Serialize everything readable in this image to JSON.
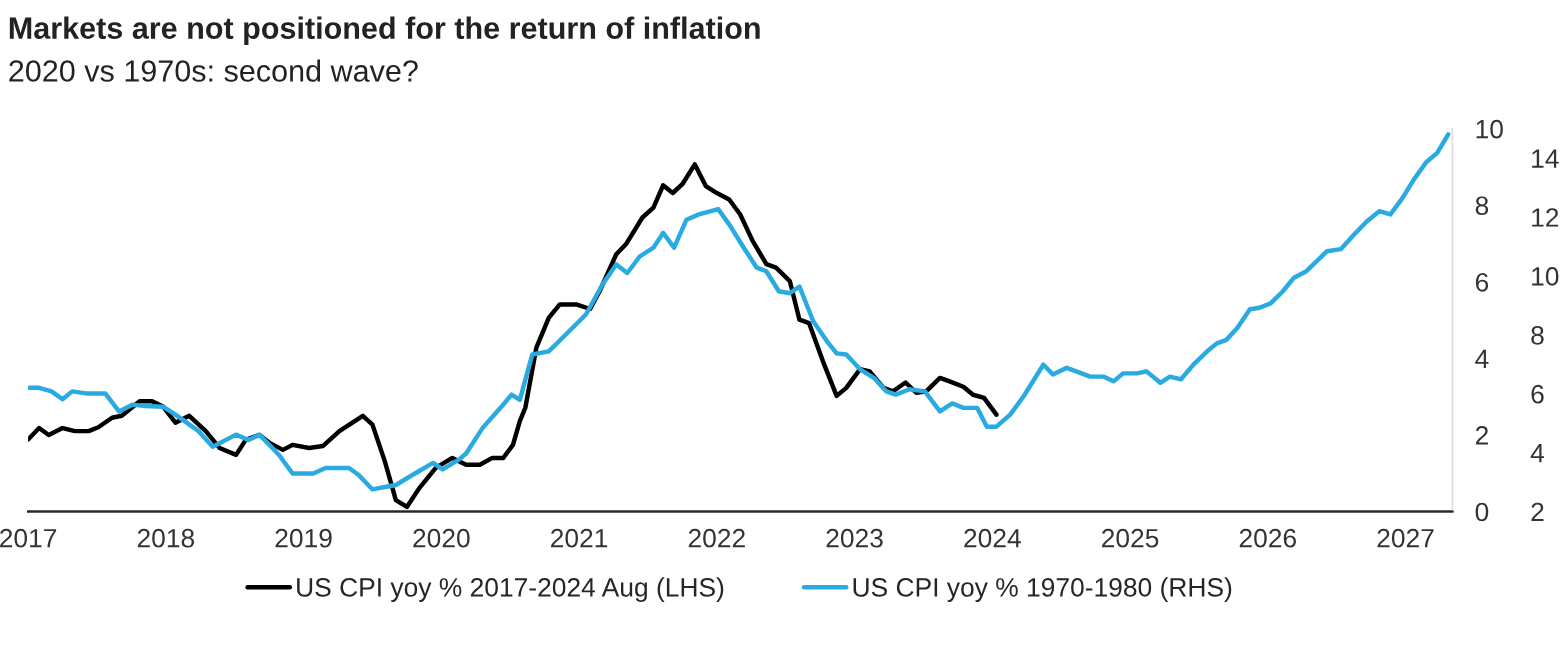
{
  "chart_data": {
    "type": "line",
    "title": "Markets are not positioned for the return of inflation",
    "subtitle": "2020 vs 1970s: second wave?",
    "xlim": [
      2017,
      2027.34
    ],
    "xticks": [
      2017,
      2018,
      2019,
      2020,
      2021,
      2022,
      2023,
      2024,
      2025,
      2026,
      2027
    ],
    "ylim": [
      0,
      10
    ],
    "yticks": [
      0,
      2,
      4,
      6,
      8,
      10
    ],
    "y2lim": [
      2,
      15
    ],
    "y2ticks": [
      2,
      4,
      6,
      8,
      10,
      12,
      14
    ],
    "grid": false,
    "legend": "bottom",
    "marker": "none",
    "line_style": "solid",
    "series": [
      {
        "name": "US CPI yoy % 2017-2024 Aug (LHS)",
        "color": "#000000",
        "x": [
          2017.0,
          2017.08,
          2017.15,
          2017.25,
          2017.34,
          2017.44,
          2017.51,
          2017.61,
          2017.68,
          2017.81,
          2017.9,
          2017.98,
          2018.07,
          2018.17,
          2018.29,
          2018.39,
          2018.51,
          2018.58,
          2018.68,
          2018.75,
          2018.85,
          2018.92,
          2019.04,
          2019.14,
          2019.26,
          2019.43,
          2019.5,
          2019.59,
          2019.67,
          2019.75,
          2019.84,
          2019.96,
          2020.08,
          2020.18,
          2020.28,
          2020.37,
          2020.45,
          2020.52,
          2020.57,
          2020.61,
          2020.69,
          2020.78,
          2020.86,
          2020.98,
          2021.08,
          2021.15,
          2021.27,
          2021.34,
          2021.46,
          2021.54,
          2021.61,
          2021.68,
          2021.75,
          2021.84,
          2021.92,
          2022.0,
          2022.09,
          2022.17,
          2022.26,
          2022.36,
          2022.43,
          2022.53,
          2022.6,
          2022.67,
          2022.77,
          2022.87,
          2022.94,
          2023.04,
          2023.11,
          2023.21,
          2023.28,
          2023.37,
          2023.45,
          2023.52,
          2023.62,
          2023.69,
          2023.79,
          2023.86,
          2023.94,
          2024.03
        ],
        "values": [
          1.88,
          2.18,
          2.0,
          2.18,
          2.1,
          2.1,
          2.2,
          2.45,
          2.5,
          2.88,
          2.88,
          2.74,
          2.32,
          2.5,
          2.1,
          1.66,
          1.48,
          1.87,
          2.0,
          1.8,
          1.61,
          1.74,
          1.66,
          1.71,
          2.1,
          2.5,
          2.27,
          1.31,
          0.3,
          0.12,
          0.61,
          1.14,
          1.4,
          1.22,
          1.22,
          1.4,
          1.4,
          1.74,
          2.36,
          2.71,
          4.28,
          5.06,
          5.41,
          5.41,
          5.29,
          5.76,
          6.72,
          6.98,
          7.68,
          7.94,
          8.52,
          8.32,
          8.55,
          9.07,
          8.5,
          8.32,
          8.15,
          7.76,
          7.07,
          6.46,
          6.37,
          6.02,
          5.01,
          4.92,
          3.93,
          3.02,
          3.23,
          3.72,
          3.66,
          3.23,
          3.14,
          3.37,
          3.1,
          3.14,
          3.49,
          3.4,
          3.26,
          3.05,
          2.97,
          2.53
        ]
      },
      {
        "name": "US CPI yoy % 1970-1980 (RHS)",
        "color": "#29abe2",
        "axis": "y2",
        "x": [
          2017.0,
          2017.08,
          2017.17,
          2017.25,
          2017.32,
          2017.42,
          2017.56,
          2017.66,
          2017.76,
          2017.85,
          2017.98,
          2018.07,
          2018.24,
          2018.34,
          2018.51,
          2018.6,
          2018.68,
          2018.82,
          2018.92,
          2019.07,
          2019.16,
          2019.33,
          2019.4,
          2019.5,
          2019.6,
          2019.67,
          2019.79,
          2019.94,
          2020.01,
          2020.13,
          2020.18,
          2020.3,
          2020.42,
          2020.51,
          2020.57,
          2020.66,
          2020.78,
          2020.88,
          2021.05,
          2021.17,
          2021.27,
          2021.35,
          2021.44,
          2021.54,
          2021.61,
          2021.69,
          2021.78,
          2021.87,
          2022.01,
          2022.09,
          2022.19,
          2022.29,
          2022.36,
          2022.45,
          2022.53,
          2022.6,
          2022.7,
          2022.8,
          2022.87,
          2022.94,
          2023.04,
          2023.14,
          2023.23,
          2023.3,
          2023.4,
          2023.51,
          2023.62,
          2023.71,
          2023.79,
          2023.89,
          2023.96,
          2024.03,
          2024.13,
          2024.23,
          2024.35,
          2024.37,
          2024.44,
          2024.54,
          2024.61,
          2024.71,
          2024.81,
          2024.88,
          2024.95,
          2025.05,
          2025.12,
          2025.22,
          2025.29,
          2025.37,
          2025.46,
          2025.56,
          2025.63,
          2025.7,
          2025.78,
          2025.87,
          2025.94,
          2026.02,
          2026.11,
          2026.19,
          2026.28,
          2026.43,
          2026.53,
          2026.62,
          2026.72,
          2026.81,
          2026.89,
          2026.98,
          2027.06,
          2027.15,
          2027.23,
          2027.31
        ],
        "values": [
          6.2,
          6.2,
          6.08,
          5.81,
          6.08,
          6.01,
          6.01,
          5.4,
          5.63,
          5.58,
          5.56,
          5.29,
          4.72,
          4.2,
          4.61,
          4.43,
          4.61,
          3.93,
          3.29,
          3.29,
          3.48,
          3.48,
          3.24,
          2.75,
          2.84,
          2.9,
          3.24,
          3.65,
          3.43,
          3.77,
          3.97,
          4.84,
          5.47,
          5.97,
          5.79,
          7.33,
          7.44,
          7.9,
          8.69,
          9.71,
          10.39,
          10.1,
          10.66,
          10.96,
          11.46,
          10.96,
          11.91,
          12.09,
          12.27,
          11.75,
          11.0,
          10.28,
          10.16,
          9.48,
          9.41,
          9.64,
          8.46,
          7.78,
          7.37,
          7.33,
          6.83,
          6.54,
          6.08,
          5.97,
          6.15,
          6.08,
          5.4,
          5.67,
          5.52,
          5.52,
          4.88,
          4.88,
          5.29,
          5.93,
          6.83,
          6.99,
          6.65,
          6.88,
          6.76,
          6.58,
          6.58,
          6.42,
          6.69,
          6.69,
          6.76,
          6.37,
          6.58,
          6.49,
          6.99,
          7.44,
          7.71,
          7.83,
          8.24,
          8.87,
          8.92,
          9.07,
          9.48,
          9.94,
          10.16,
          10.84,
          10.91,
          11.37,
          11.86,
          12.2,
          12.09,
          12.66,
          13.27,
          13.86,
          14.18,
          14.81
        ]
      }
    ]
  }
}
